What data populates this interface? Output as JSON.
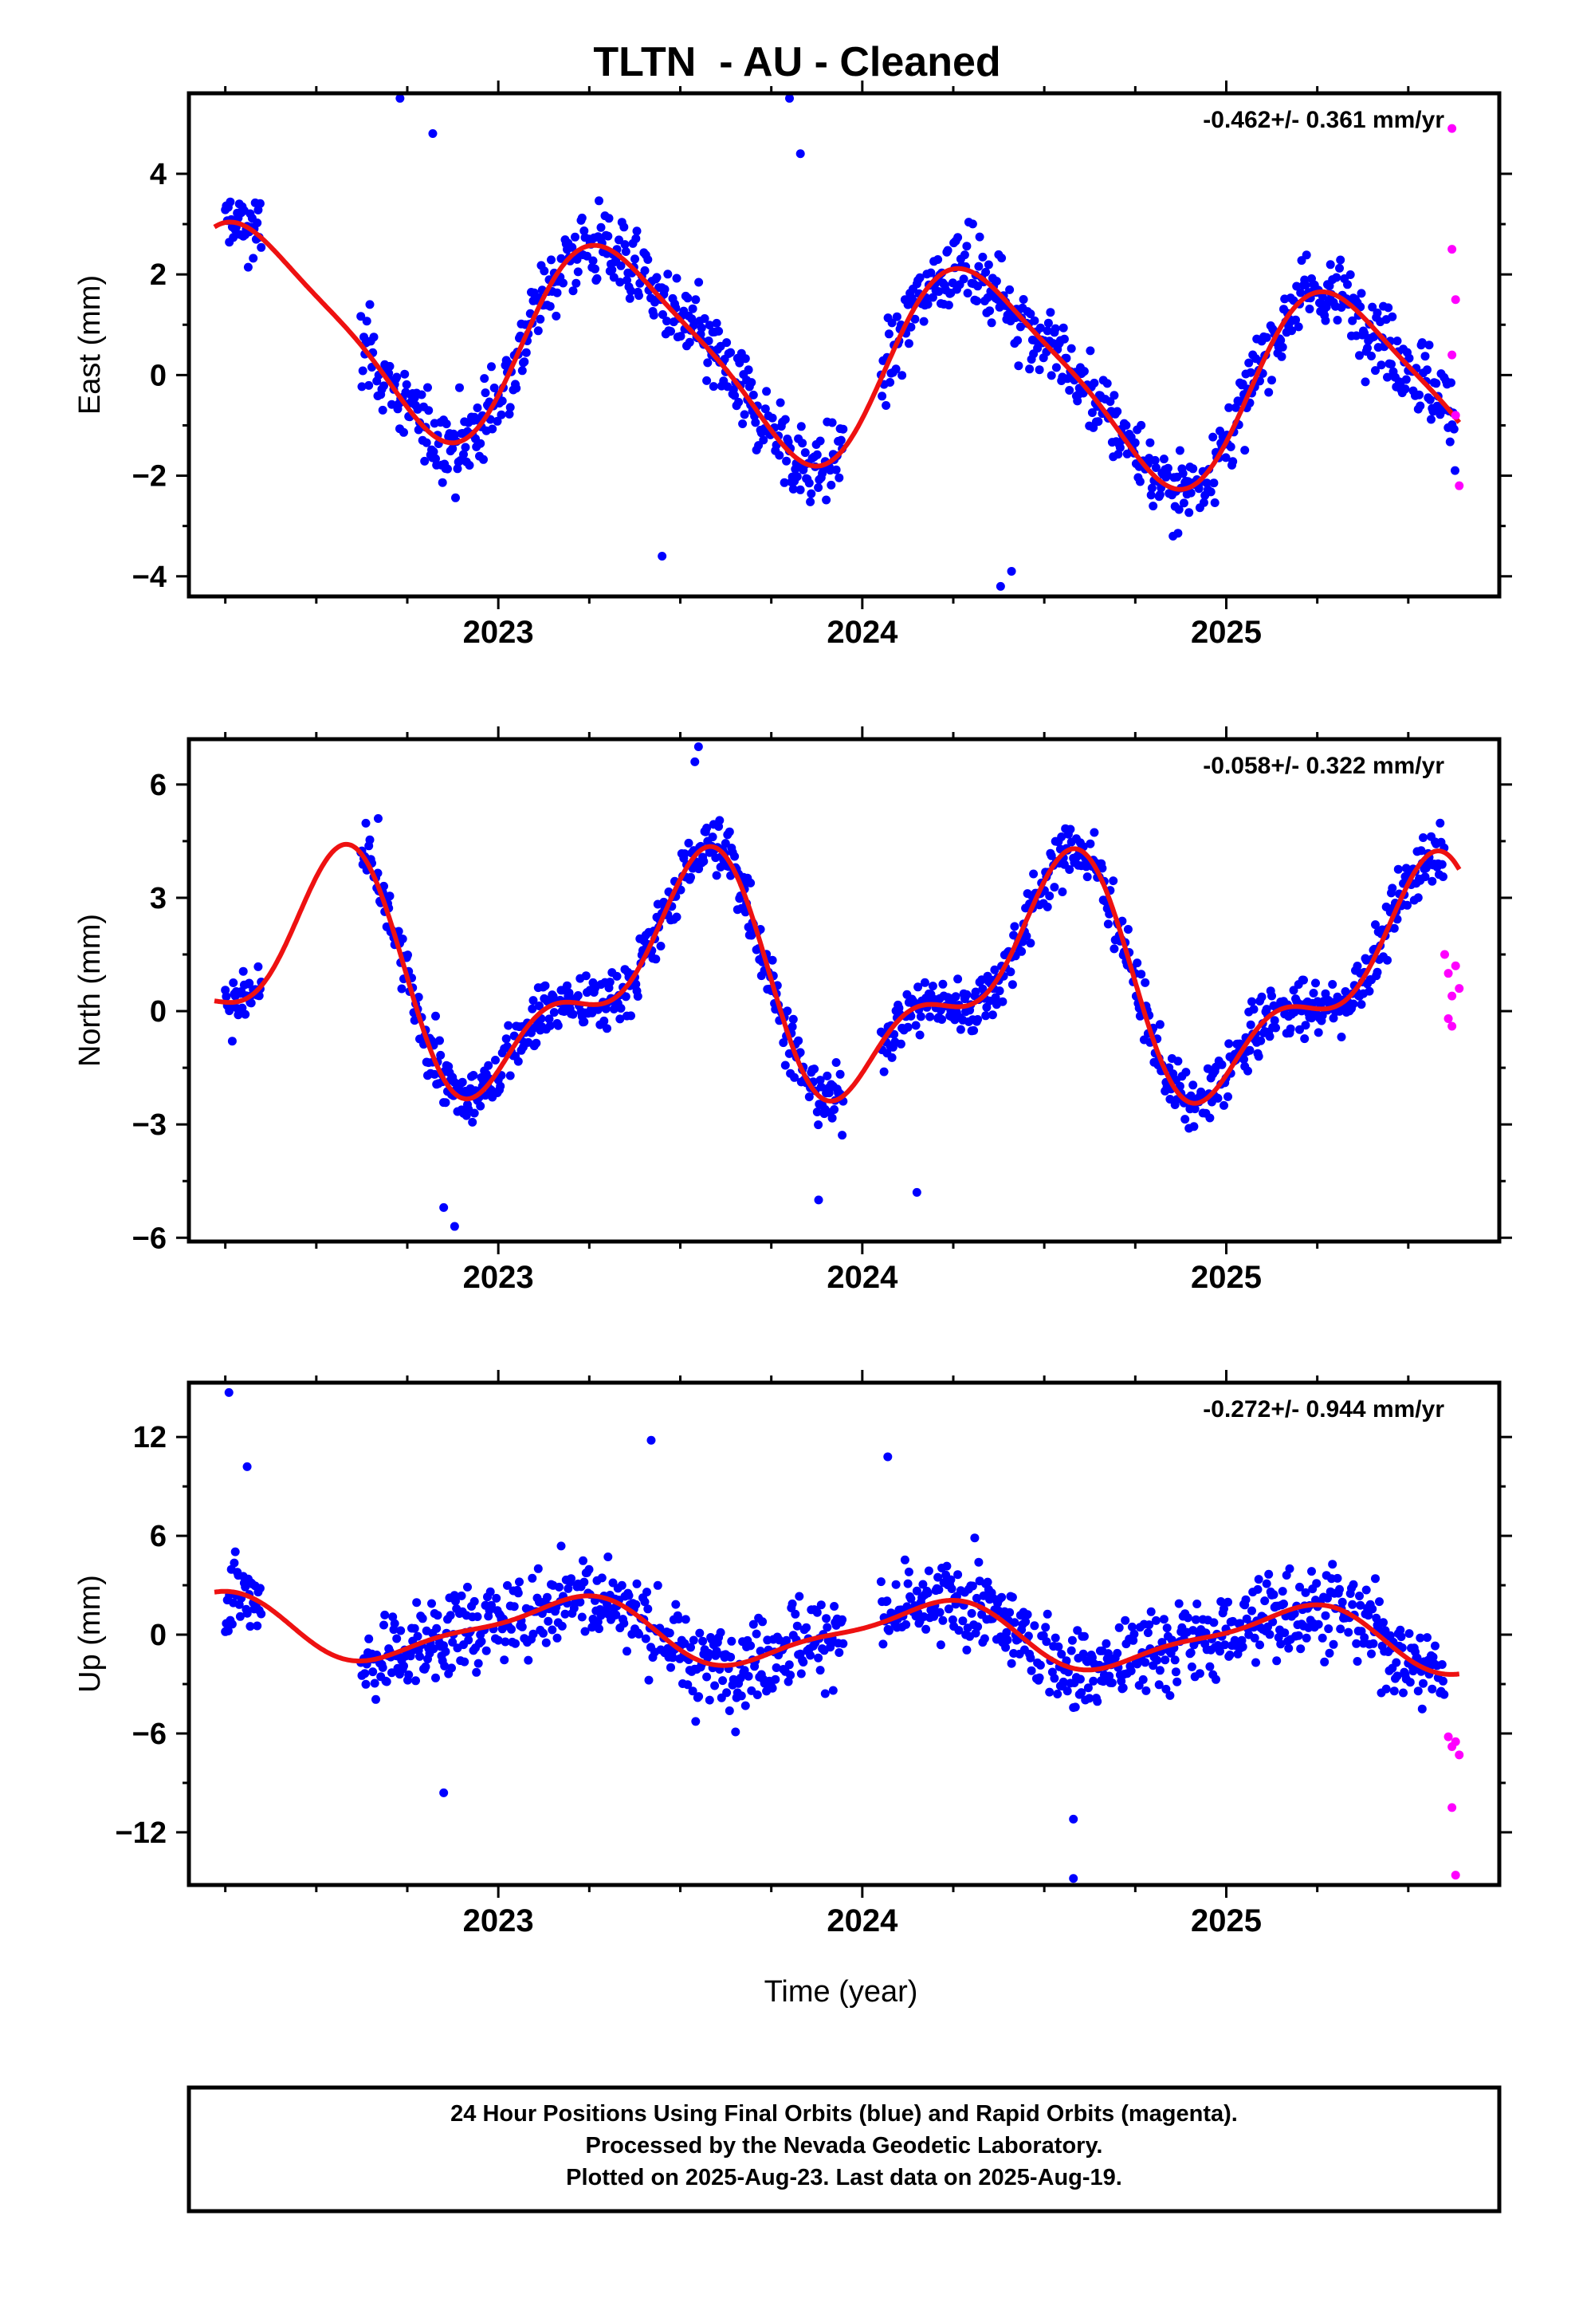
{
  "title": "TLTN  - AU - Cleaned",
  "colors": {
    "final": "#0000ff",
    "rapid": "#ff00ff",
    "model": "#ee1111",
    "frame": "#000000"
  },
  "xlabel": "Time (year)",
  "footer": {
    "line1": "24 Hour Positions Using Final Orbits (blue) and Rapid Orbits (magenta).",
    "line2": "Processed by the Nevada Geodetic Laboratory.",
    "line3": "Plotted on 2025-Aug-23. Last data on 2025-Aug-19."
  },
  "chart_data": [
    {
      "type": "scatter",
      "ylabel": "East (mm)",
      "rate_label": "-0.462+/- 0.361 mm/yr",
      "xlim": [
        2022.15,
        2025.75
      ],
      "ylim": [
        -4.4,
        5.6
      ],
      "yticks": [
        -4,
        -2,
        0,
        2,
        4
      ],
      "xticks": [
        2023,
        2024,
        2025
      ],
      "data_start": 2022.25,
      "data_end": 2025.63,
      "model_start": 2022.22,
      "model_end": 2025.64,
      "gaps": [
        [
          2022.35,
          2022.62
        ],
        [
          2023.95,
          2024.05
        ]
      ],
      "model": {
        "offset": 0.3,
        "trend": -0.462,
        "t0": 2023.9,
        "c1": -0.87,
        "s1": 1.72,
        "c2": -0.25,
        "s2": 0.29
      },
      "scatter": 1.0,
      "extra_points": [
        [
          2022.73,
          5.5
        ],
        [
          2023.8,
          5.5
        ],
        [
          2022.82,
          4.8
        ],
        [
          2023.83,
          4.4
        ],
        [
          2023.45,
          -3.6
        ],
        [
          2024.38,
          -4.2
        ],
        [
          2024.41,
          -3.9
        ]
      ],
      "rapid": [
        [
          2025.62,
          4.9
        ],
        [
          2025.62,
          2.5
        ],
        [
          2025.63,
          1.5
        ],
        [
          2025.62,
          0.4
        ],
        [
          2025.63,
          -0.8
        ],
        [
          2025.64,
          -2.2
        ]
      ]
    },
    {
      "type": "scatter",
      "ylabel": "North (mm)",
      "rate_label": "-0.058+/- 0.322 mm/yr",
      "xlim": [
        2022.15,
        2025.75
      ],
      "ylim": [
        -6.1,
        7.2
      ],
      "yticks": [
        -6,
        -3,
        0,
        3,
        6
      ],
      "xticks": [
        2023,
        2024,
        2025
      ],
      "data_start": 2022.25,
      "data_end": 2025.6,
      "model_start": 2022.22,
      "model_end": 2025.64,
      "gaps": [
        [
          2022.35,
          2022.62
        ],
        [
          2023.95,
          2024.05
        ]
      ],
      "model": {
        "offset": 0.7,
        "trend": -0.058,
        "t0": 2023.9,
        "c1": -2.55,
        "s1": -0.34,
        "c2": 0.22,
        "s2": 1.33
      },
      "scatter": 1.0,
      "extra_points": [
        [
          2023.55,
          7.0
        ],
        [
          2023.54,
          6.6
        ],
        [
          2022.85,
          -5.2
        ],
        [
          2022.88,
          -5.7
        ],
        [
          2023.88,
          -5.0
        ],
        [
          2024.15,
          -4.8
        ],
        [
          2022.67,
          5.1
        ]
      ],
      "rapid": [
        [
          2025.6,
          1.5
        ],
        [
          2025.61,
          1.0
        ],
        [
          2025.62,
          0.4
        ],
        [
          2025.63,
          1.2
        ],
        [
          2025.61,
          -0.2
        ],
        [
          2025.62,
          -0.4
        ],
        [
          2025.64,
          0.6
        ]
      ]
    },
    {
      "type": "scatter",
      "ylabel": "Up (mm)",
      "rate_label": "-0.272+/- 0.944 mm/yr",
      "xlim": [
        2022.15,
        2025.75
      ],
      "ylim": [
        -15.2,
        15.3
      ],
      "yticks": [
        -12,
        -6,
        0,
        6,
        12
      ],
      "xticks": [
        2023,
        2024,
        2025
      ],
      "data_start": 2022.25,
      "data_end": 2025.6,
      "model_start": 2022.22,
      "model_end": 2025.64,
      "gaps": [
        [
          2022.35,
          2022.62
        ],
        [
          2023.95,
          2024.05
        ]
      ],
      "model": {
        "offset": 0.1,
        "trend": -0.272,
        "t0": 2023.9,
        "c1": 0.72,
        "s1": 1.66,
        "c2": -0.42,
        "s2": -0.36
      },
      "scatter": 3.3,
      "extra_points": [
        [
          2022.26,
          14.7
        ],
        [
          2022.31,
          10.2
        ],
        [
          2023.42,
          11.8
        ],
        [
          2024.07,
          10.8
        ],
        [
          2024.58,
          -11.2
        ],
        [
          2024.58,
          -14.8
        ],
        [
          2022.85,
          -9.6
        ]
      ],
      "rapid": [
        [
          2025.61,
          -6.2
        ],
        [
          2025.62,
          -6.8
        ],
        [
          2025.63,
          -6.5
        ],
        [
          2025.64,
          -7.3
        ],
        [
          2025.62,
          -10.5
        ],
        [
          2025.63,
          -14.6
        ]
      ]
    }
  ]
}
